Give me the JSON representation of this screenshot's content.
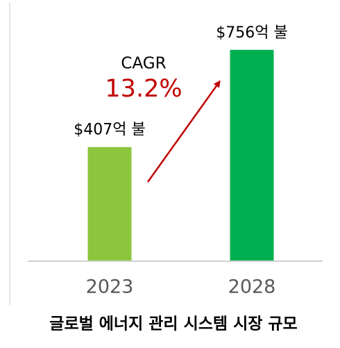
{
  "chart_data": {
    "type": "bar",
    "title": "글로벌 에너지 관리 시스템 시장 규모",
    "categories": [
      "2023",
      "2028"
    ],
    "values": [
      407,
      756
    ],
    "value_labels": [
      "$407억 불",
      "$756억 불"
    ],
    "colors": [
      "#8cc63e",
      "#00b050"
    ],
    "annotations": [
      "CAGR",
      "13.2%"
    ],
    "ylim": [
      0,
      900
    ]
  }
}
